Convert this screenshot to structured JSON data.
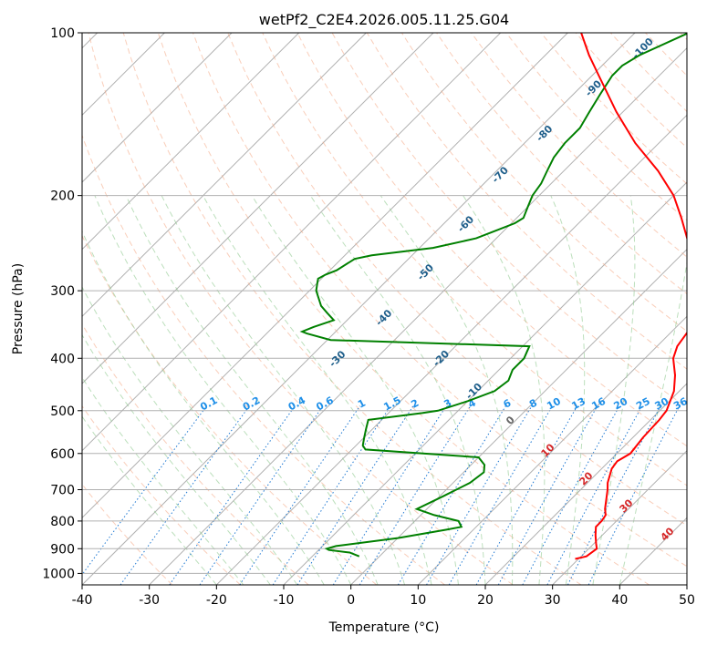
{
  "chart_data": {
    "type": "skew-t",
    "title": "wetPf2_C2E4.2026.005.11.25.G04",
    "xlabel": "Temperature (°C)",
    "ylabel": "Pressure (hPa)",
    "xlim": [
      -40,
      50
    ],
    "ylim": [
      1050,
      100
    ],
    "y_scale": "log",
    "x_ticks": [
      "-40",
      "-30",
      "-20",
      "-10",
      "0",
      "10",
      "20",
      "30",
      "40",
      "50"
    ],
    "y_ticks": [
      "100",
      "200",
      "300",
      "400",
      "500",
      "600",
      "700",
      "800",
      "900",
      "1000"
    ],
    "grid": true,
    "temperature": {
      "color": "#ff0000",
      "p": [
        940,
        930,
        900,
        880,
        850,
        820,
        800,
        780,
        760,
        700,
        680,
        640,
        620,
        600,
        560,
        520,
        500,
        460,
        430,
        400,
        380,
        350,
        320,
        300,
        260,
        220,
        200,
        180,
        160,
        140,
        120,
        110,
        100
      ],
      "t": [
        29.5,
        30.8,
        31.2,
        30.3,
        29,
        27.8,
        27.8,
        27.5,
        26.5,
        24,
        23,
        21.5,
        21.2,
        22,
        21.5,
        21.3,
        21,
        19.2,
        17,
        14.2,
        13,
        12.2,
        9.5,
        7.5,
        2,
        -5.5,
        -10,
        -16,
        -23.5,
        -31,
        -39,
        -43.5,
        -48
      ]
    },
    "dewpoint": {
      "color": "#008000",
      "p": [
        930,
        915,
        905,
        900,
        890,
        860,
        830,
        820,
        800,
        780,
        760,
        720,
        680,
        650,
        630,
        610,
        590,
        580,
        560,
        540,
        520,
        505,
        500,
        480,
        460,
        440,
        420,
        400,
        390,
        380,
        370,
        360,
        357,
        350,
        340,
        330,
        320,
        300,
        290,
        285,
        280,
        275,
        262,
        258,
        250,
        240,
        225,
        220,
        210,
        200,
        190,
        180,
        170,
        160,
        150,
        140,
        130,
        120,
        115,
        110,
        100
      ],
      "t": [
        -3,
        -5,
        -8.5,
        -9,
        -8,
        0,
        6,
        7.8,
        6.5,
        2,
        -1.5,
        0.5,
        2.5,
        3,
        2,
        0,
        -18,
        -19,
        -20,
        -21,
        -22,
        -15,
        -13,
        -10,
        -7.5,
        -7,
        -8,
        -8,
        -8.5,
        -9,
        -39.5,
        -44,
        -45,
        -44,
        -42,
        -44,
        -46,
        -49,
        -50,
        -50.5,
        -50,
        -49,
        -48,
        -46,
        -38,
        -33,
        -29.5,
        -29,
        -30,
        -31,
        -31.5,
        -32.5,
        -33.5,
        -34,
        -34,
        -35,
        -36,
        -37,
        -37,
        -36,
        -32
      ]
    },
    "mixing_ratio_labels": [
      "0.1",
      "0.2",
      "0.4",
      "0.6",
      "1",
      "1.5",
      "2",
      "3",
      "4",
      "6",
      "8",
      "10",
      "13",
      "16",
      "20",
      "25",
      "30",
      "36"
    ],
    "dry_adiabat_labels": [
      "-100",
      "-90",
      "-80",
      "-70",
      "-60",
      "-50",
      "-40",
      "-30",
      "-20",
      "-10"
    ],
    "moist_adiabat_labels": [
      "0",
      "10",
      "20",
      "30",
      "40"
    ]
  }
}
